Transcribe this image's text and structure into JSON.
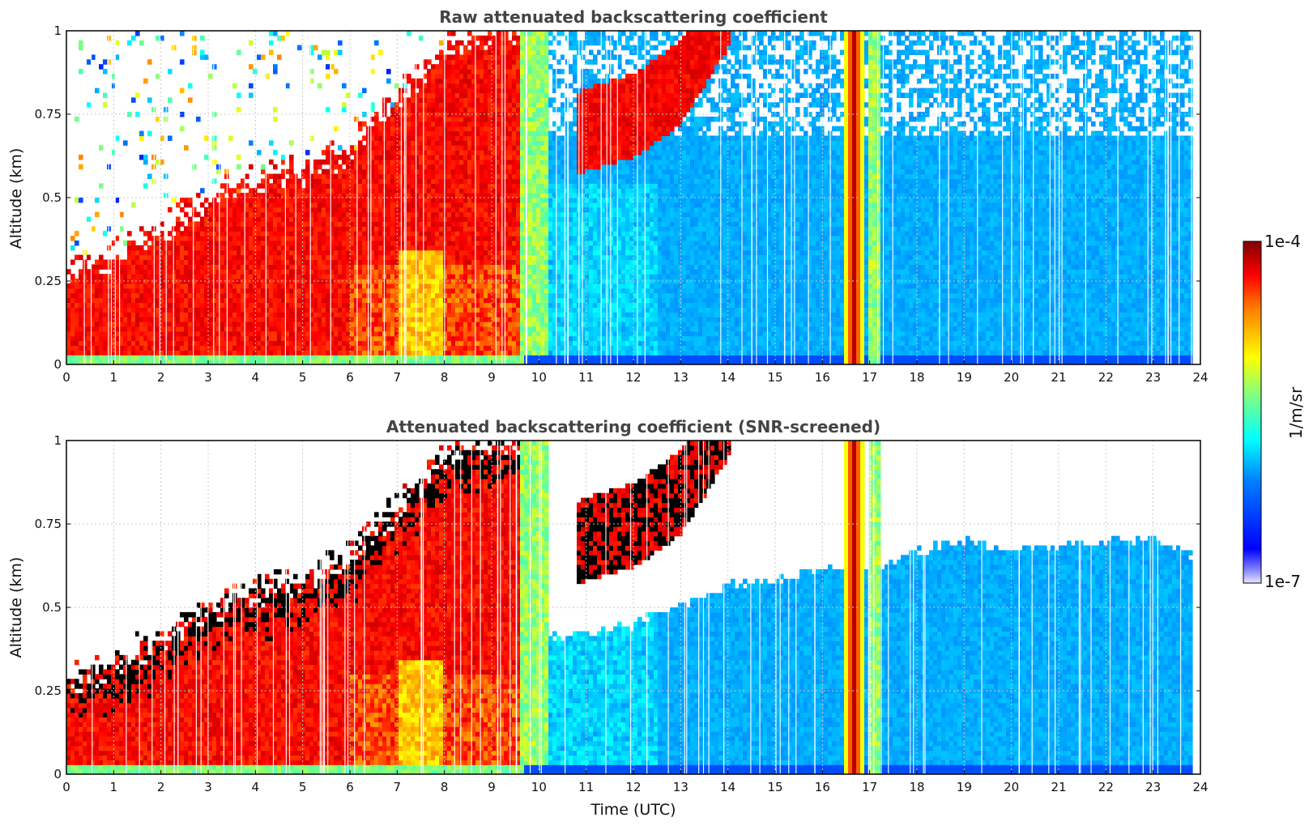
{
  "chart_data": [
    {
      "type": "heatmap",
      "title": "Raw attenuated backscattering coefficient",
      "xlabel": "",
      "ylabel": "Altitude (km)",
      "xlim": [
        0,
        24
      ],
      "ylim": [
        0,
        1
      ],
      "x_ticks": [
        "0",
        "1",
        "2",
        "3",
        "4",
        "5",
        "6",
        "7",
        "8",
        "9",
        "10",
        "11",
        "12",
        "13",
        "14",
        "15",
        "16",
        "17",
        "18",
        "19",
        "20",
        "21",
        "22",
        "23",
        "24"
      ],
      "y_ticks": [
        "0",
        "0.25",
        "0.5",
        "0.75",
        "1"
      ],
      "grid": true,
      "description_values": {
        "boundary_layer_top_km": {
          "x": [
            0,
            1,
            2,
            3,
            4,
            5,
            6,
            7,
            8,
            9,
            9.5
          ],
          "y": [
            0.28,
            0.33,
            0.4,
            0.5,
            0.55,
            0.58,
            0.65,
            0.8,
            0.95,
            1.0,
            1.0
          ]
        },
        "cloud_layer_km": {
          "x": [
            11,
            12,
            13,
            14
          ],
          "y": [
            0.6,
            0.62,
            0.75,
            1.0
          ]
        },
        "clear_region_start_utc": 10,
        "rain_band_utc": [
          16.5,
          16.85
        ],
        "data_end_utc": 23.85
      },
      "screened": false
    },
    {
      "type": "heatmap",
      "title": "Attenuated backscattering coefficient (SNR-screened)",
      "xlabel": "Time (UTC)",
      "ylabel": "Altitude (km)",
      "xlim": [
        0,
        24
      ],
      "ylim": [
        0,
        1
      ],
      "x_ticks": [
        "0",
        "1",
        "2",
        "3",
        "4",
        "5",
        "6",
        "7",
        "8",
        "9",
        "10",
        "11",
        "12",
        "13",
        "14",
        "15",
        "16",
        "17",
        "18",
        "19",
        "20",
        "21",
        "22",
        "23",
        "24"
      ],
      "y_ticks": [
        "0",
        "0.25",
        "0.5",
        "0.75",
        "1"
      ],
      "grid": true,
      "description_values": {
        "boundary_layer_top_km": {
          "x": [
            0,
            1,
            2,
            3,
            4,
            5,
            6,
            7,
            8,
            9,
            9.5
          ],
          "y": [
            0.28,
            0.33,
            0.4,
            0.5,
            0.55,
            0.58,
            0.65,
            0.8,
            0.95,
            1.0,
            1.0
          ]
        },
        "screened_top_km": {
          "x": [
            10,
            12,
            14,
            15,
            16,
            17,
            18,
            19,
            20,
            21,
            22,
            23,
            23.85
          ],
          "y": [
            0.4,
            0.45,
            0.57,
            0.58,
            0.62,
            0.6,
            0.67,
            0.7,
            0.67,
            0.68,
            0.7,
            0.71,
            0.66
          ]
        },
        "rain_band_utc": [
          16.5,
          16.85
        ],
        "data_end_utc": 23.85
      },
      "screened": true
    }
  ],
  "colorbar": {
    "label": "1/m/sr",
    "max_label": "1e-4",
    "min_label": "1e-7",
    "scale": "log",
    "colormap": "jet",
    "range": [
      1e-07,
      0.0001
    ]
  },
  "colors": {
    "title": "#444444",
    "grid": "#c8c8c8",
    "low": "#0000ff",
    "high": "#800000"
  }
}
